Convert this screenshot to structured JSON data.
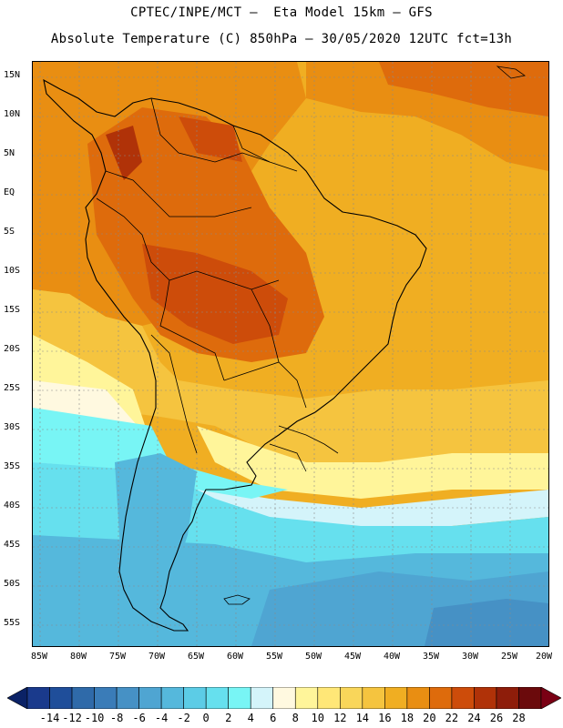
{
  "title": {
    "line1": "CPTEC/INPE/MCT –  Eta Model 15km – GFS",
    "line2": "Absolute Temperature (C) 850hPa – 30/05/2020 12UTC fct=13h"
  },
  "latitude_labels": [
    "15N",
    "10N",
    "5N",
    "EQ",
    "5S",
    "10S",
    "15S",
    "20S",
    "25S",
    "30S",
    "35S",
    "40S",
    "45S",
    "50S",
    "55S"
  ],
  "longitude_labels": [
    "85W",
    "80W",
    "75W",
    "70W",
    "65W",
    "60W",
    "55W",
    "50W",
    "45W",
    "40W",
    "35W",
    "30W",
    "25W",
    "20W"
  ],
  "colorbar": {
    "labels": [
      "-14",
      "-12",
      "-10",
      "-8",
      "-6",
      "-4",
      "-2",
      "0",
      "2",
      "4",
      "6",
      "8",
      "10",
      "12",
      "14",
      "16",
      "18",
      "20",
      "22",
      "24",
      "26",
      "28"
    ],
    "colors": [
      "#1a3a8c",
      "#1f4e9a",
      "#2f6aa9",
      "#3a7cb8",
      "#4691c5",
      "#4fa5d2",
      "#55b8dc",
      "#5ccce6",
      "#66e0ee",
      "#78f5f5",
      "#d4f4fa",
      "#fff9e0",
      "#fff59a",
      "#ffe777",
      "#f9d65a",
      "#f5c43f",
      "#f0ae22",
      "#e98e12",
      "#de6b0c",
      "#cd4c0a",
      "#b03208",
      "#8e1d0a",
      "#6b0a0c"
    ],
    "low_arrow_color": "#0b2266",
    "high_arrow_color": "#7a0014"
  }
}
